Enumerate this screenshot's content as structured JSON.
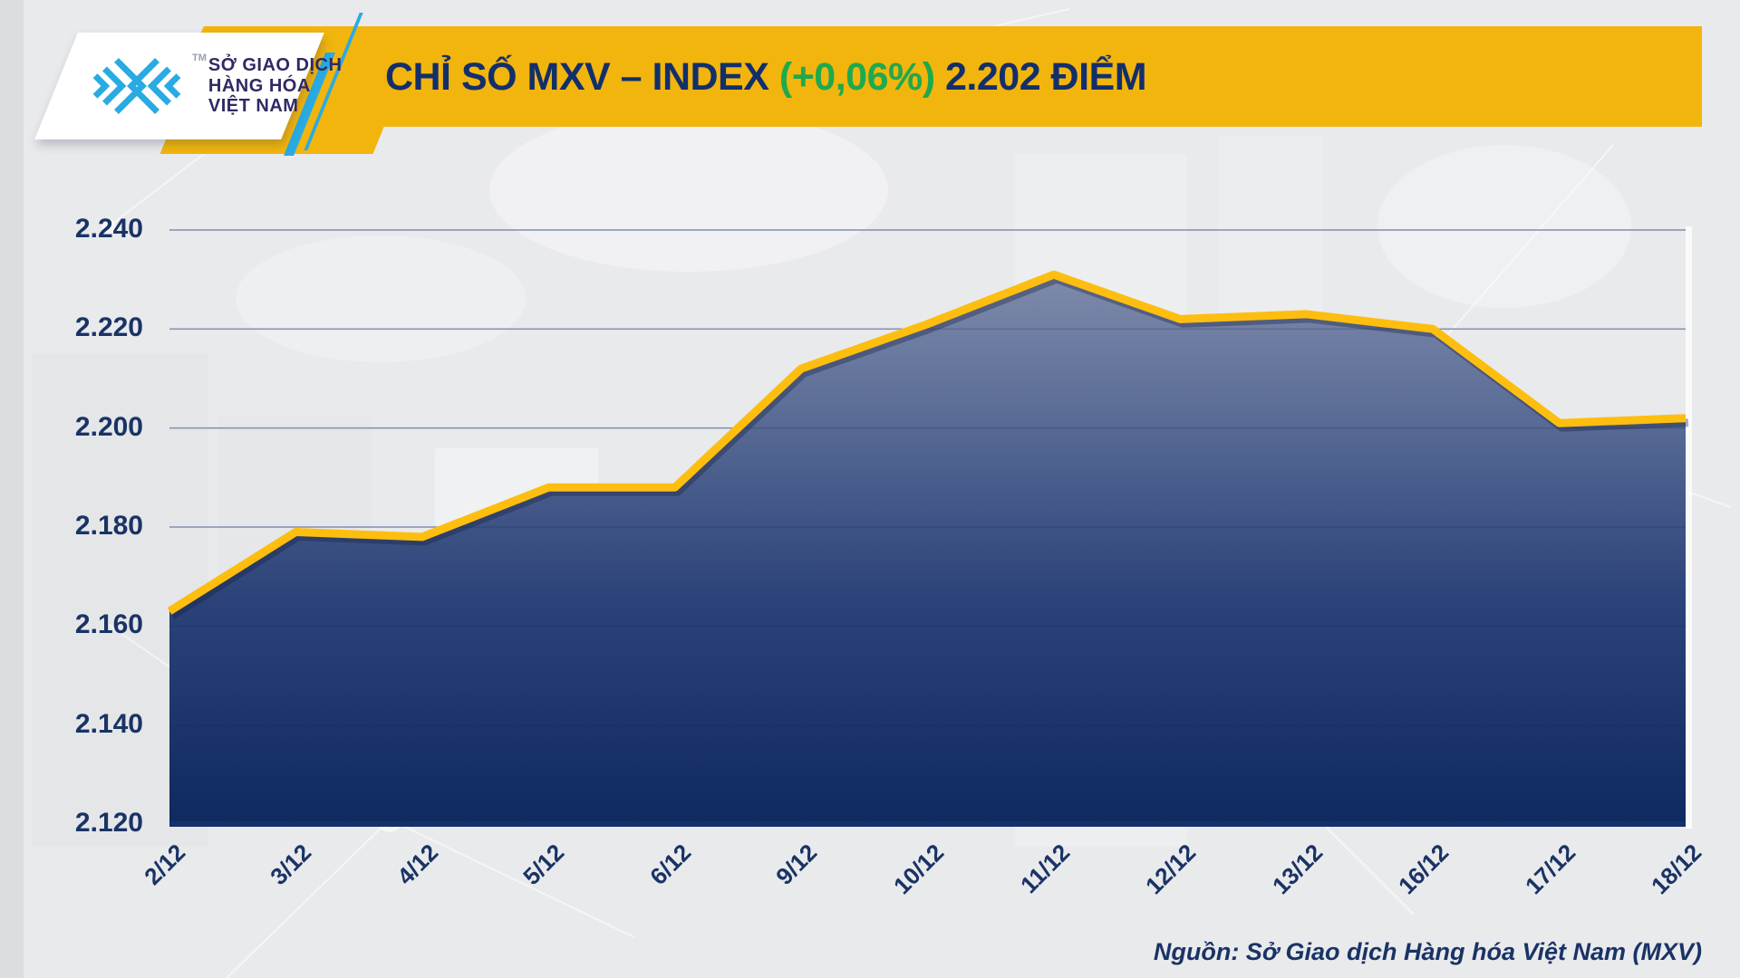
{
  "header": {
    "logo": {
      "org_lines": [
        "SỞ GIAO DỊCH",
        "HÀNG HÓA",
        "VIỆT NAM"
      ],
      "trademark": "TM"
    },
    "title": {
      "prefix": "CHỈ SỐ MXV – INDEX",
      "change": " (+0,06%) ",
      "suffix": "2.202 ĐIỂM"
    }
  },
  "footer": {
    "source": "Nguồn: Sở Giao dịch Hàng hóa Việt Nam (MXV)"
  },
  "colors": {
    "banner_yellow": "#f2b50d",
    "line_yellow": "#febe10",
    "navy_text": "#132f6b",
    "green_change": "#1fa94e",
    "fill_top": "#8a94b2",
    "fill_bottom": "#0f2a60",
    "logo_cyan": "#29abe2"
  },
  "chart_data": {
    "type": "area",
    "title": "CHỈ SỐ MXV – INDEX (+0,06%) 2.202 ĐIỂM",
    "series_name": "MXV-Index",
    "x": [
      "2/12",
      "3/12",
      "4/12",
      "5/12",
      "6/12",
      "9/12",
      "10/12",
      "11/12",
      "12/12",
      "13/12",
      "16/12",
      "17/12",
      "18/12"
    ],
    "values": [
      2163,
      2179,
      2178,
      2188,
      2188,
      2212,
      2221,
      2231,
      2222,
      2223,
      2220,
      2201,
      2202
    ],
    "value_labels": [
      "2.163",
      "2.179",
      "2.178",
      "2.188",
      "2.188",
      "2.212",
      "2.221",
      "2.231",
      "2.222",
      "2.223",
      "2.220",
      "2.201",
      "2.202"
    ],
    "last_value_label": "2.202",
    "change_label": "+0,06%",
    "y_ticks": [
      "2.240",
      "2.220",
      "2.200",
      "2.180",
      "2.160",
      "2.140",
      "2.120"
    ],
    "y_tick_values": [
      2240,
      2220,
      2200,
      2180,
      2160,
      2140,
      2120
    ],
    "ylim": [
      2120,
      2240
    ],
    "xlabel": "",
    "ylabel": "",
    "grid": true,
    "legend": "none"
  }
}
